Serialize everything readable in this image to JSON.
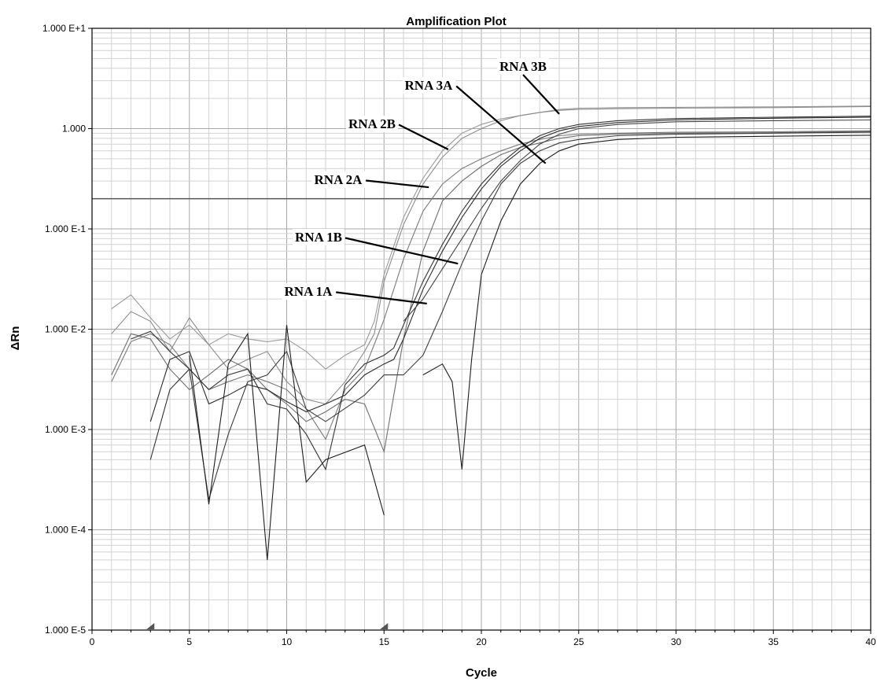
{
  "chart_data": {
    "type": "line",
    "title": "Amplification Plot",
    "xlabel": "Cycle",
    "ylabel": "ΔRn",
    "xlim": [
      0,
      40
    ],
    "ylim": [
      1e-05,
      10
    ],
    "yscale": "log",
    "grid": true,
    "x_ticks": [
      "0",
      "5",
      "10",
      "15",
      "20",
      "25",
      "30",
      "35",
      "40"
    ],
    "y_ticks": [
      "1.000 E+1",
      "1.000",
      "1.000 E-1",
      "1.000 E-2",
      "1.000 E-3",
      "1.000 E-4",
      "1.000 E-5"
    ],
    "threshold": 0.2,
    "baseline_markers": [
      3,
      15
    ],
    "annotations": [
      {
        "text": "RNA 3B",
        "x": 24,
        "y": 1.4
      },
      {
        "text": "RNA 3A",
        "x": 23.3,
        "y": 0.45
      },
      {
        "text": "RNA 2B",
        "x": 18.3,
        "y": 0.62
      },
      {
        "text": "RNA 2A",
        "x": 17.3,
        "y": 0.26
      },
      {
        "text": "RNA 1B",
        "x": 18.8,
        "y": 0.045
      },
      {
        "text": "RNA 1A",
        "x": 17.2,
        "y": 0.018
      }
    ],
    "series": [
      {
        "color": "#9a9a9a",
        "values": [
          [
            1,
            0.016
          ],
          [
            2,
            0.022
          ],
          [
            3,
            0.013
          ],
          [
            4,
            0.008
          ],
          [
            5,
            0.011
          ],
          [
            6,
            0.007
          ],
          [
            7,
            0.009
          ],
          [
            8,
            0.008
          ],
          [
            9,
            0.0075
          ],
          [
            10,
            0.008
          ],
          [
            11,
            0.006
          ],
          [
            12,
            0.004
          ],
          [
            13,
            0.0055
          ],
          [
            14,
            0.007
          ],
          [
            14.5,
            0.012
          ],
          [
            15,
            0.035
          ],
          [
            16,
            0.13
          ],
          [
            17,
            0.32
          ],
          [
            18,
            0.6
          ],
          [
            19,
            0.9
          ],
          [
            20,
            1.1
          ],
          [
            21,
            1.25
          ],
          [
            22,
            1.35
          ],
          [
            23,
            1.45
          ],
          [
            24,
            1.55
          ],
          [
            25,
            1.6
          ],
          [
            27,
            1.62
          ],
          [
            30,
            1.63
          ],
          [
            35,
            1.65
          ],
          [
            40,
            1.68
          ]
        ]
      },
      {
        "color": "#8c8c8c",
        "values": [
          [
            1,
            0.009
          ],
          [
            2,
            0.015
          ],
          [
            3,
            0.012
          ],
          [
            4,
            0.006
          ],
          [
            5,
            0.013
          ],
          [
            6,
            0.007
          ],
          [
            7,
            0.004
          ],
          [
            8,
            0.005
          ],
          [
            9,
            0.006
          ],
          [
            10,
            0.003
          ],
          [
            11,
            0.002
          ],
          [
            12,
            0.0018
          ],
          [
            13,
            0.003
          ],
          [
            14,
            0.006
          ],
          [
            14.5,
            0.009
          ],
          [
            15,
            0.03
          ],
          [
            16,
            0.11
          ],
          [
            17,
            0.28
          ],
          [
            18,
            0.52
          ],
          [
            19,
            0.8
          ],
          [
            20,
            1.0
          ],
          [
            21,
            1.2
          ],
          [
            22,
            1.35
          ],
          [
            23,
            1.45
          ],
          [
            24,
            1.52
          ],
          [
            25,
            1.56
          ],
          [
            27,
            1.58
          ],
          [
            30,
            1.6
          ],
          [
            35,
            1.62
          ],
          [
            40,
            1.66
          ]
        ]
      },
      {
        "color": "#7a7a7a",
        "values": [
          [
            1,
            0.003
          ],
          [
            2,
            0.0075
          ],
          [
            3,
            0.009
          ],
          [
            4,
            0.007
          ],
          [
            5,
            0.004
          ],
          [
            6,
            0.0025
          ],
          [
            7,
            0.003
          ],
          [
            8,
            0.0035
          ],
          [
            9,
            0.003
          ],
          [
            10,
            0.0025
          ],
          [
            11,
            0.0016
          ],
          [
            12,
            0.0008
          ],
          [
            13,
            0.0025
          ],
          [
            14,
            0.004
          ],
          [
            15,
            0.0125
          ],
          [
            16,
            0.05
          ],
          [
            17,
            0.15
          ],
          [
            18,
            0.28
          ],
          [
            19,
            0.4
          ],
          [
            20,
            0.5
          ],
          [
            21,
            0.6
          ],
          [
            22,
            0.7
          ],
          [
            23,
            0.78
          ],
          [
            24,
            0.85
          ],
          [
            25,
            0.88
          ],
          [
            27,
            0.9
          ],
          [
            30,
            0.92
          ],
          [
            35,
            0.93
          ],
          [
            40,
            0.95
          ]
        ]
      },
      {
        "color": "#6e6e6e",
        "values": [
          [
            1,
            0.0035
          ],
          [
            2,
            0.009
          ],
          [
            3,
            0.008
          ],
          [
            4,
            0.004
          ],
          [
            5,
            0.0025
          ],
          [
            6,
            0.0035
          ],
          [
            7,
            0.005
          ],
          [
            8,
            0.004
          ],
          [
            9,
            0.0025
          ],
          [
            10,
            0.0018
          ],
          [
            11,
            0.0012
          ],
          [
            12,
            0.0015
          ],
          [
            13,
            0.002
          ],
          [
            14,
            0.0018
          ],
          [
            15,
            0.0006
          ],
          [
            16,
            0.008
          ],
          [
            17,
            0.06
          ],
          [
            18,
            0.19
          ],
          [
            19,
            0.3
          ],
          [
            20,
            0.42
          ],
          [
            21,
            0.55
          ],
          [
            22,
            0.65
          ],
          [
            23,
            0.72
          ],
          [
            24,
            0.8
          ],
          [
            25,
            0.85
          ],
          [
            27,
            0.88
          ],
          [
            30,
            0.9
          ],
          [
            35,
            0.91
          ],
          [
            40,
            0.94
          ]
        ]
      },
      {
        "color": "#333333",
        "values": [
          [
            3,
            0.0005
          ],
          [
            4,
            0.0025
          ],
          [
            5,
            0.004
          ],
          [
            6,
            0.0025
          ],
          [
            7,
            0.0035
          ],
          [
            8,
            0.004
          ],
          [
            9,
            0.0018
          ],
          [
            10,
            0.0016
          ],
          [
            11,
            0.0009
          ],
          [
            12,
            0.0004
          ],
          [
            13,
            0.0028
          ],
          [
            14,
            0.0045
          ],
          [
            15,
            0.0055
          ],
          [
            15.5,
            0.0065
          ],
          [
            16,
            0.011
          ],
          [
            17,
            0.03
          ],
          [
            18,
            0.07
          ],
          [
            19,
            0.15
          ],
          [
            20,
            0.28
          ],
          [
            21,
            0.45
          ],
          [
            22,
            0.65
          ],
          [
            23,
            0.85
          ],
          [
            24,
            1.0
          ],
          [
            25,
            1.1
          ],
          [
            27,
            1.2
          ],
          [
            30,
            1.26
          ],
          [
            35,
            1.3
          ],
          [
            40,
            1.33
          ]
        ]
      },
      {
        "color": "#2a2a2a",
        "values": [
          [
            3,
            0.0012
          ],
          [
            4,
            0.005
          ],
          [
            5,
            0.006
          ],
          [
            6,
            0.0018
          ],
          [
            7,
            0.0022
          ],
          [
            8,
            0.0028
          ],
          [
            9,
            0.0025
          ],
          [
            10,
            0.0019
          ],
          [
            11,
            0.0015
          ],
          [
            12,
            0.0018
          ],
          [
            13,
            0.0022
          ],
          [
            14,
            0.0035
          ],
          [
            15,
            0.0045
          ],
          [
            15.5,
            0.005
          ],
          [
            16,
            0.008
          ],
          [
            17,
            0.025
          ],
          [
            18,
            0.06
          ],
          [
            19,
            0.13
          ],
          [
            20,
            0.25
          ],
          [
            21,
            0.42
          ],
          [
            22,
            0.6
          ],
          [
            23,
            0.8
          ],
          [
            24,
            0.95
          ],
          [
            25,
            1.05
          ],
          [
            27,
            1.15
          ],
          [
            30,
            1.22
          ],
          [
            35,
            1.27
          ],
          [
            40,
            1.3
          ]
        ]
      },
      {
        "color": "#3c3c3c",
        "values": [
          [
            2,
            0.008
          ],
          [
            3,
            0.0095
          ],
          [
            4,
            0.006
          ],
          [
            5,
            0.004
          ],
          [
            6,
            0.0002
          ],
          [
            7,
            0.0009
          ],
          [
            8,
            0.003
          ],
          [
            9,
            0.0035
          ],
          [
            10,
            0.006
          ],
          [
            11,
            0.0016
          ],
          [
            12,
            0.0012
          ],
          [
            14,
            0.0022
          ],
          [
            15,
            0.0035
          ],
          [
            16,
            0.0035
          ],
          [
            17,
            0.0055
          ],
          [
            18,
            0.015
          ],
          [
            19,
            0.045
          ],
          [
            20,
            0.12
          ],
          [
            21,
            0.28
          ],
          [
            22,
            0.45
          ],
          [
            23,
            0.6
          ],
          [
            24,
            0.72
          ],
          [
            25,
            0.78
          ],
          [
            27,
            0.85
          ],
          [
            30,
            0.88
          ],
          [
            35,
            0.9
          ],
          [
            40,
            0.92
          ]
        ]
      },
      {
        "color": "#1e1e1e",
        "values": [
          [
            5,
            0.0055
          ],
          [
            6,
            0.00018
          ],
          [
            7,
            0.0045
          ],
          [
            8,
            0.009
          ],
          [
            9,
            5e-05
          ],
          [
            10,
            0.011
          ],
          [
            11,
            0.0003
          ],
          [
            12,
            0.0005
          ],
          [
            14,
            0.0007
          ],
          [
            15,
            0.00014
          ]
        ]
      },
      {
        "color": "#1e1e1e",
        "values": [
          [
            17,
            0.0035
          ],
          [
            18,
            0.0045
          ],
          [
            18.5,
            0.003
          ],
          [
            19,
            0.0004
          ],
          [
            19.5,
            0.005
          ],
          [
            20,
            0.035
          ],
          [
            21,
            0.12
          ],
          [
            22,
            0.28
          ],
          [
            23,
            0.45
          ],
          [
            24,
            0.6
          ],
          [
            25,
            0.7
          ],
          [
            27,
            0.78
          ],
          [
            30,
            0.82
          ],
          [
            35,
            0.84
          ],
          [
            40,
            0.86
          ]
        ]
      },
      {
        "color": "#444444",
        "values": [
          [
            16,
            0.012
          ],
          [
            17,
            0.02
          ],
          [
            18,
            0.04
          ],
          [
            19,
            0.08
          ],
          [
            20,
            0.16
          ],
          [
            21,
            0.3
          ],
          [
            22,
            0.48
          ],
          [
            23,
            0.7
          ],
          [
            24,
            0.88
          ],
          [
            25,
            1.0
          ],
          [
            27,
            1.1
          ],
          [
            30,
            1.17
          ],
          [
            35,
            1.2
          ],
          [
            40,
            1.22
          ]
        ]
      }
    ]
  }
}
